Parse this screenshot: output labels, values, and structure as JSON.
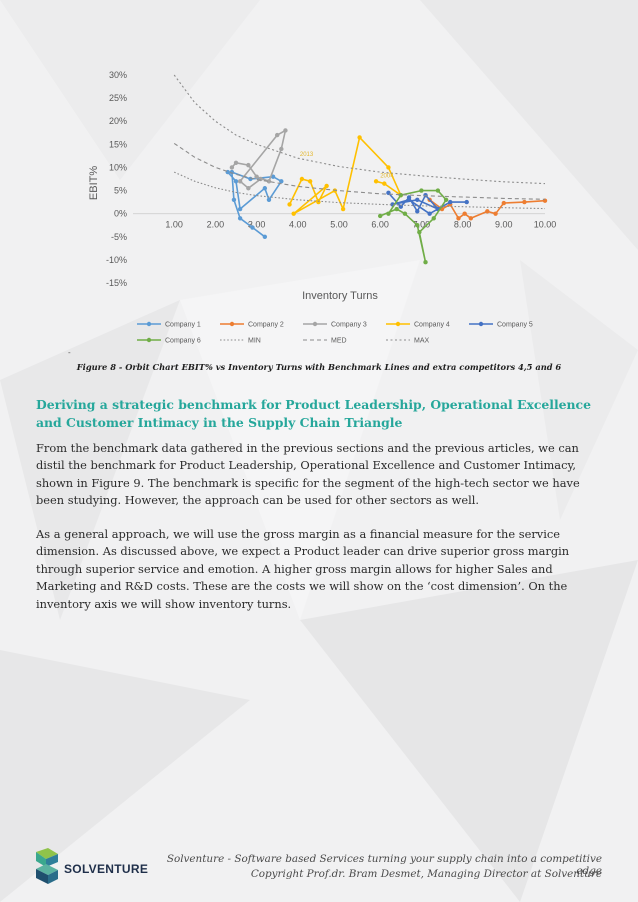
{
  "caption": "Figure 8 - Orbit Chart EBIT% vs Inventory Turns with Benchmark Lines and extra competitors 4,5 and 6",
  "caption_dash": "-",
  "heading": "Deriving a strategic benchmark for Product Leadership, Operational Excellence and Customer Intimacy in the Supply Chain Triangle",
  "paragraphs": [
    "From the benchmark data gathered in the previous sections and the previous articles, we can distil the benchmark for Product Leadership, Operational Excellence and Customer Intimacy, shown in Figure 9. The benchmark is specific for the segment of the high-tech sector we have been studying. However, the approach can be used for other sectors as well.",
    "As a general approach, we will use the gross margin as a financial measure for the service dimension. As discussed above, we expect a Product leader can drive superior gross margin through superior service and emotion. A higher gross margin allows for higher Sales and Marketing and R&D costs. These are the costs we will show on the ‘cost dimension’. On the inventory axis we will show inventory turns."
  ],
  "footer": {
    "brand": "SOLVENTURE",
    "line1": "Solventure - Software based Services turning your supply chain into a competitive edge",
    "line2": "Copyright Prof.dr. Bram Desmet, Managing Director at Solventure"
  },
  "chart_data": {
    "type": "line",
    "xlabel": "Inventory Turns",
    "ylabel": "EBIT%",
    "xlim": [
      0,
      10
    ],
    "ylim": [
      -15,
      30
    ],
    "x_ticks": [
      "1.00",
      "2.00",
      "3.00",
      "4.00",
      "5.00",
      "6.00",
      "7.00",
      "8.00",
      "9.00",
      "10.00"
    ],
    "y_ticks": [
      "30%",
      "25%",
      "20%",
      "15%",
      "10%",
      "5%",
      "0%",
      "-5%",
      "-10%",
      "-15%"
    ],
    "x_ticks_values": [
      1,
      2,
      3,
      4,
      5,
      6,
      7,
      8,
      9,
      10
    ],
    "y_ticks_values": [
      30,
      25,
      20,
      15,
      10,
      5,
      0,
      -5,
      -10,
      -15
    ],
    "annotations": [
      {
        "text": "2013",
        "x": 4.05,
        "y": 12.5
      },
      {
        "text": "2004",
        "x": 6.0,
        "y": 7.8
      }
    ],
    "series": [
      {
        "name": "Company 1",
        "color": "#5b9bd5",
        "x": [
          2.3,
          2.5,
          2.6,
          3.2,
          3.3,
          3.6,
          3.4,
          2.85,
          2.4,
          2.45,
          2.6,
          2.9,
          3.2
        ],
        "y": [
          9,
          7,
          1,
          5.5,
          3,
          7,
          8,
          7.5,
          9,
          3,
          -1,
          -3,
          -5
        ]
      },
      {
        "name": "Company 2",
        "color": "#ed7d31",
        "x": [
          7.2,
          7.5,
          7.7,
          7.9,
          8.05,
          8.2,
          8.6,
          8.8,
          9.0,
          9.5,
          10.0
        ],
        "y": [
          3,
          1,
          2,
          -1,
          0,
          -1,
          0.5,
          0,
          2.3,
          2.5,
          2.8
        ]
      },
      {
        "name": "Company 3",
        "color": "#a5a5a5",
        "x": [
          2.4,
          2.5,
          2.8,
          3.0,
          3.3,
          3.6,
          3.7,
          3.5,
          2.6,
          2.8,
          3.1
        ],
        "y": [
          10,
          11,
          10.5,
          8,
          7,
          14,
          18,
          17,
          7,
          5.5,
          7.5
        ]
      },
      {
        "name": "Company 4",
        "color": "#ffc000",
        "x": [
          3.8,
          4.1,
          4.3,
          4.5,
          4.7,
          3.9,
          4.9,
          5.1,
          5.5,
          6.2,
          6.5,
          6.1,
          5.9
        ],
        "y": [
          2,
          7.5,
          7,
          2.5,
          6,
          0,
          5,
          1,
          16.5,
          10,
          4,
          6.5,
          7
        ]
      },
      {
        "name": "Company 5",
        "color": "#4472c4",
        "x": [
          6.2,
          6.5,
          6.7,
          6.9,
          7.1,
          7.4,
          6.9,
          6.3,
          6.7,
          7.2,
          7.7,
          8.1
        ],
        "y": [
          4.5,
          1.5,
          3.5,
          0.5,
          4,
          1,
          3,
          2,
          3,
          0,
          2.5,
          2.5
        ]
      },
      {
        "name": "Company 6",
        "color": "#70ad47",
        "x": [
          6.0,
          6.4,
          6.6,
          6.9,
          7.1,
          6.95,
          7.3,
          7.6,
          7.4,
          7.0,
          6.5,
          6.2
        ],
        "y": [
          -0.5,
          1,
          0,
          -2.5,
          -10.5,
          -4,
          -1,
          3,
          5,
          5,
          4,
          0
        ]
      },
      {
        "name": "MIN",
        "color": "#8c8c8c",
        "dash": "1.6 2",
        "x": [
          1.0,
          1.5,
          2.0,
          2.5,
          3.0,
          4.0,
          5.0,
          6.0,
          7.0,
          8.0,
          9.0,
          10.0
        ],
        "y": [
          9.0,
          7.0,
          5.6,
          4.6,
          3.9,
          3.0,
          2.4,
          2.0,
          1.7,
          1.5,
          1.3,
          1.1
        ]
      },
      {
        "name": "MED",
        "color": "#8c8c8c",
        "dash": "4 3",
        "x": [
          1.0,
          1.5,
          2.0,
          2.5,
          3.0,
          4.0,
          5.0,
          6.0,
          7.0,
          8.0,
          9.0,
          10.0
        ],
        "y": [
          15.2,
          12.2,
          10.0,
          8.5,
          7.4,
          5.9,
          5.0,
          4.3,
          3.9,
          3.6,
          3.3,
          3.1
        ]
      },
      {
        "name": "MAX",
        "color": "#8c8c8c",
        "dash": "2 2.5",
        "x": [
          1.0,
          1.5,
          2.0,
          2.5,
          3.0,
          4.0,
          5.0,
          6.0,
          7.0,
          8.0,
          9.0,
          10.0
        ],
        "y": [
          30.0,
          24.0,
          20.0,
          17.0,
          15.0,
          12.0,
          10.2,
          9.0,
          8.2,
          7.5,
          6.9,
          6.5
        ]
      }
    ],
    "legend": {
      "placement": "bottom"
    }
  }
}
